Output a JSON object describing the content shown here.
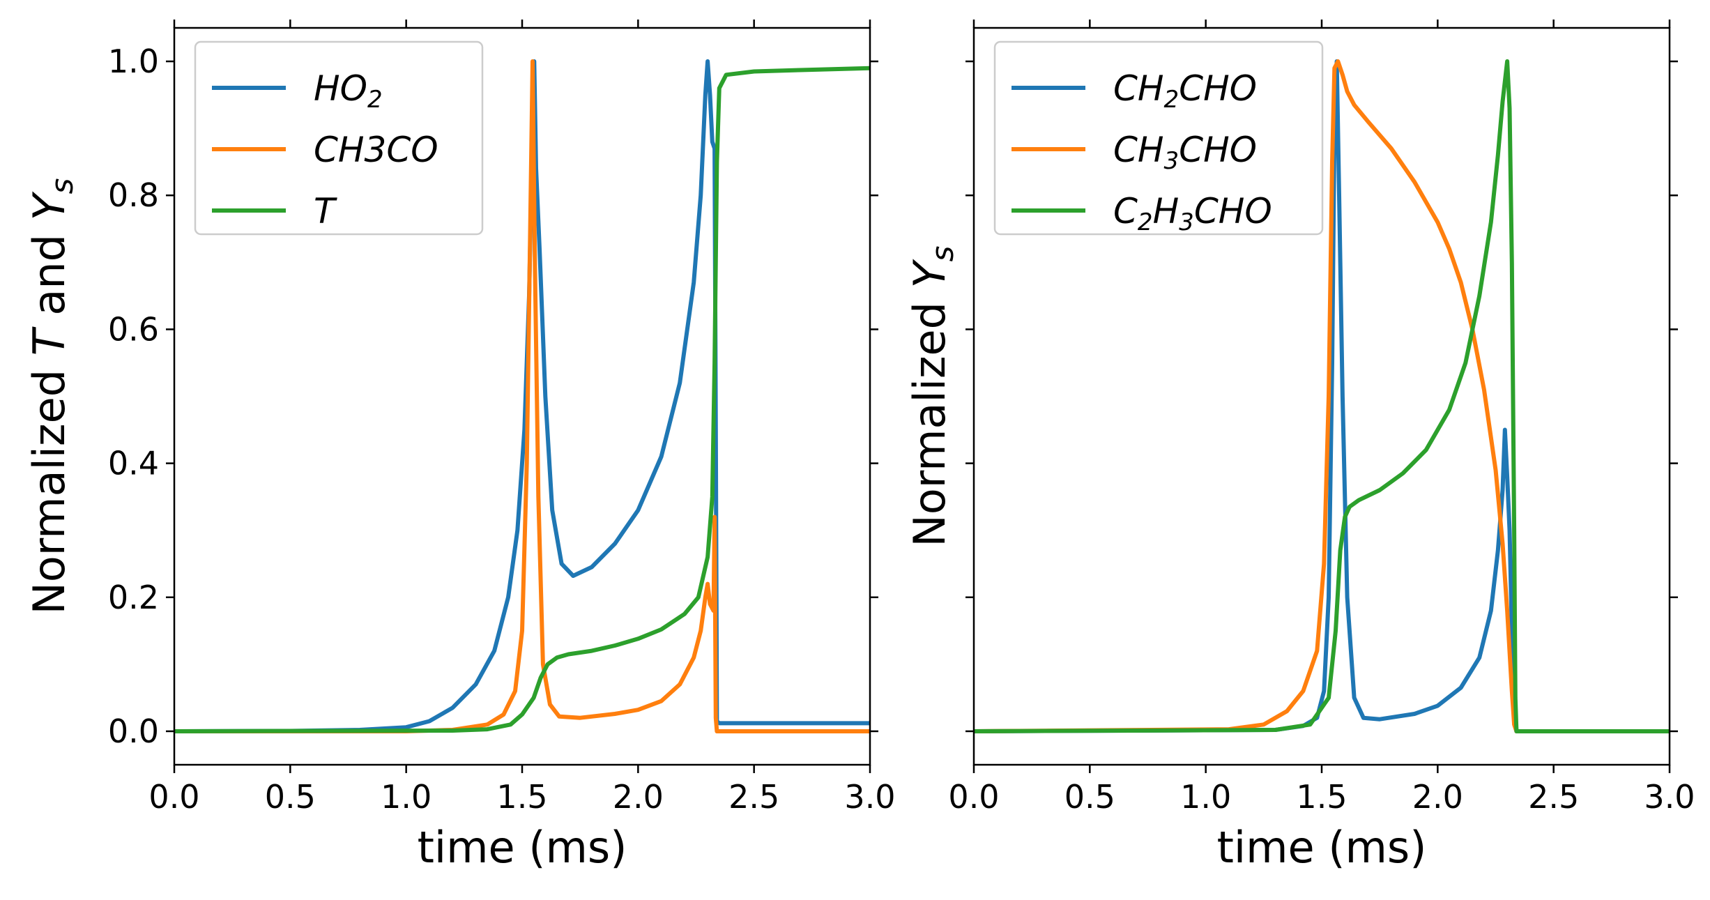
{
  "colors": {
    "blue": "#1f77b4",
    "orange": "#ff7f0e",
    "green": "#2ca02c"
  },
  "chart_data": [
    {
      "type": "line",
      "xlabel": "time (ms)",
      "ylabel": {
        "prefix": "Normalized ",
        "var1": "T",
        "mid": " and ",
        "var2": "Y",
        "sub": "s"
      },
      "xlim": [
        0,
        3
      ],
      "ylim": [
        -0.05,
        1.05
      ],
      "xticks": [
        "0.0",
        "0.5",
        "1.0",
        "1.5",
        "2.0",
        "2.5",
        "3.0"
      ],
      "yticks": [
        "0.0",
        "0.2",
        "0.4",
        "0.6",
        "0.8",
        "1.0"
      ],
      "show_ytick_labels": true,
      "grid": false,
      "legend_position": "top-left",
      "series": [
        {
          "name": "HO2",
          "legend": {
            "base": "HO",
            "sub": "2",
            "rest": ""
          },
          "color": "#1f77b4",
          "points": [
            [
              0,
              0
            ],
            [
              0.5,
              0.0005
            ],
            [
              0.8,
              0.002
            ],
            [
              1.0,
              0.006
            ],
            [
              1.1,
              0.015
            ],
            [
              1.2,
              0.035
            ],
            [
              1.3,
              0.07
            ],
            [
              1.38,
              0.12
            ],
            [
              1.44,
              0.2
            ],
            [
              1.48,
              0.3
            ],
            [
              1.51,
              0.45
            ],
            [
              1.53,
              0.65
            ],
            [
              1.545,
              0.9
            ],
            [
              1.552,
              1.0
            ],
            [
              1.56,
              0.84
            ],
            [
              1.575,
              0.72
            ],
            [
              1.6,
              0.5
            ],
            [
              1.63,
              0.33
            ],
            [
              1.67,
              0.25
            ],
            [
              1.72,
              0.232
            ],
            [
              1.8,
              0.245
            ],
            [
              1.9,
              0.28
            ],
            [
              2.0,
              0.33
            ],
            [
              2.1,
              0.41
            ],
            [
              2.18,
              0.52
            ],
            [
              2.24,
              0.67
            ],
            [
              2.27,
              0.8
            ],
            [
              2.29,
              0.95
            ],
            [
              2.3,
              1.0
            ],
            [
              2.31,
              0.95
            ],
            [
              2.32,
              0.88
            ],
            [
              2.33,
              0.87
            ],
            [
              2.335,
              0.45
            ],
            [
              2.34,
              0.015
            ],
            [
              2.35,
              0.012
            ],
            [
              2.5,
              0.012
            ],
            [
              3.0,
              0.012
            ]
          ]
        },
        {
          "name": "CH3CO",
          "legend": {
            "base": "CH3CO",
            "sub": "",
            "rest": ""
          },
          "color": "#ff7f0e",
          "points": [
            [
              0,
              0
            ],
            [
              1.0,
              0
            ],
            [
              1.2,
              0.002
            ],
            [
              1.35,
              0.01
            ],
            [
              1.42,
              0.025
            ],
            [
              1.47,
              0.06
            ],
            [
              1.5,
              0.15
            ],
            [
              1.52,
              0.4
            ],
            [
              1.535,
              0.75
            ],
            [
              1.545,
              1.0
            ],
            [
              1.555,
              0.7
            ],
            [
              1.57,
              0.35
            ],
            [
              1.59,
              0.1
            ],
            [
              1.62,
              0.04
            ],
            [
              1.66,
              0.022
            ],
            [
              1.75,
              0.02
            ],
            [
              1.9,
              0.026
            ],
            [
              2.0,
              0.032
            ],
            [
              2.1,
              0.045
            ],
            [
              2.18,
              0.07
            ],
            [
              2.24,
              0.11
            ],
            [
              2.27,
              0.15
            ],
            [
              2.29,
              0.2
            ],
            [
              2.3,
              0.22
            ],
            [
              2.31,
              0.19
            ],
            [
              2.325,
              0.18
            ],
            [
              2.33,
              0.32
            ],
            [
              2.335,
              0.02
            ],
            [
              2.34,
              0
            ],
            [
              3.0,
              0
            ]
          ]
        },
        {
          "name": "T",
          "legend": {
            "base": "T",
            "sub": "",
            "rest": ""
          },
          "color": "#2ca02c",
          "points": [
            [
              0,
              0
            ],
            [
              1.2,
              0.001
            ],
            [
              1.35,
              0.003
            ],
            [
              1.45,
              0.01
            ],
            [
              1.5,
              0.025
            ],
            [
              1.55,
              0.05
            ],
            [
              1.58,
              0.08
            ],
            [
              1.61,
              0.1
            ],
            [
              1.65,
              0.11
            ],
            [
              1.7,
              0.115
            ],
            [
              1.8,
              0.12
            ],
            [
              1.9,
              0.128
            ],
            [
              2.0,
              0.138
            ],
            [
              2.1,
              0.152
            ],
            [
              2.2,
              0.175
            ],
            [
              2.26,
              0.2
            ],
            [
              2.3,
              0.26
            ],
            [
              2.32,
              0.35
            ],
            [
              2.33,
              0.55
            ],
            [
              2.34,
              0.85
            ],
            [
              2.35,
              0.96
            ],
            [
              2.38,
              0.98
            ],
            [
              2.5,
              0.985
            ],
            [
              2.7,
              0.987
            ],
            [
              3.0,
              0.99
            ]
          ]
        }
      ]
    },
    {
      "type": "line",
      "xlabel": "time (ms)",
      "ylabel": {
        "prefix": "Normalized ",
        "var1": "",
        "mid": "",
        "var2": "Y",
        "sub": "s"
      },
      "xlim": [
        0,
        3
      ],
      "ylim": [
        -0.05,
        1.05
      ],
      "xticks": [
        "0.0",
        "0.5",
        "1.0",
        "1.5",
        "2.0",
        "2.5",
        "3.0"
      ],
      "yticks": [
        "0.0",
        "0.2",
        "0.4",
        "0.6",
        "0.8",
        "1.0"
      ],
      "show_ytick_labels": false,
      "grid": false,
      "legend_position": "top-left",
      "series": [
        {
          "name": "CH2CHO",
          "legend": {
            "base": "CH",
            "sub": "2",
            "rest": "CHO"
          },
          "color": "#1f77b4",
          "points": [
            [
              0,
              0
            ],
            [
              1.3,
              0.002
            ],
            [
              1.42,
              0.008
            ],
            [
              1.48,
              0.02
            ],
            [
              1.51,
              0.06
            ],
            [
              1.53,
              0.2
            ],
            [
              1.545,
              0.55
            ],
            [
              1.555,
              0.9
            ],
            [
              1.565,
              1.0
            ],
            [
              1.575,
              0.8
            ],
            [
              1.59,
              0.5
            ],
            [
              1.61,
              0.2
            ],
            [
              1.64,
              0.05
            ],
            [
              1.68,
              0.02
            ],
            [
              1.75,
              0.018
            ],
            [
              1.9,
              0.026
            ],
            [
              2.0,
              0.038
            ],
            [
              2.1,
              0.065
            ],
            [
              2.18,
              0.11
            ],
            [
              2.23,
              0.18
            ],
            [
              2.26,
              0.27
            ],
            [
              2.28,
              0.36
            ],
            [
              2.29,
              0.45
            ],
            [
              2.3,
              0.38
            ],
            [
              2.31,
              0.3
            ],
            [
              2.32,
              0.15
            ],
            [
              2.33,
              0.05
            ],
            [
              2.34,
              0
            ],
            [
              3.0,
              0
            ]
          ]
        },
        {
          "name": "CH3CHO",
          "legend": {
            "base": "CH",
            "sub": "3",
            "rest": "CHO"
          },
          "color": "#ff7f0e",
          "points": [
            [
              0,
              0
            ],
            [
              1.1,
              0.003
            ],
            [
              1.25,
              0.01
            ],
            [
              1.35,
              0.03
            ],
            [
              1.42,
              0.06
            ],
            [
              1.48,
              0.12
            ],
            [
              1.51,
              0.25
            ],
            [
              1.53,
              0.5
            ],
            [
              1.545,
              0.85
            ],
            [
              1.555,
              0.99
            ],
            [
              1.57,
              1.0
            ],
            [
              1.59,
              0.98
            ],
            [
              1.61,
              0.955
            ],
            [
              1.64,
              0.935
            ],
            [
              1.7,
              0.91
            ],
            [
              1.8,
              0.87
            ],
            [
              1.9,
              0.82
            ],
            [
              2.0,
              0.76
            ],
            [
              2.05,
              0.72
            ],
            [
              2.1,
              0.67
            ],
            [
              2.15,
              0.6
            ],
            [
              2.2,
              0.51
            ],
            [
              2.25,
              0.39
            ],
            [
              2.28,
              0.28
            ],
            [
              2.3,
              0.18
            ],
            [
              2.32,
              0.06
            ],
            [
              2.33,
              0.01
            ],
            [
              2.34,
              0
            ],
            [
              3.0,
              0
            ]
          ]
        },
        {
          "name": "C2H3CHO",
          "legend": {
            "base": "C",
            "sub": "2",
            "rest": "H",
            "sub2": "3",
            "rest2": "CHO"
          },
          "color": "#2ca02c",
          "points": [
            [
              0,
              0
            ],
            [
              1.3,
              0.002
            ],
            [
              1.45,
              0.01
            ],
            [
              1.53,
              0.05
            ],
            [
              1.56,
              0.15
            ],
            [
              1.58,
              0.27
            ],
            [
              1.6,
              0.32
            ],
            [
              1.62,
              0.335
            ],
            [
              1.66,
              0.345
            ],
            [
              1.75,
              0.36
            ],
            [
              1.85,
              0.385
            ],
            [
              1.95,
              0.42
            ],
            [
              2.05,
              0.48
            ],
            [
              2.12,
              0.55
            ],
            [
              2.18,
              0.65
            ],
            [
              2.23,
              0.76
            ],
            [
              2.26,
              0.86
            ],
            [
              2.28,
              0.94
            ],
            [
              2.3,
              1.0
            ],
            [
              2.31,
              0.93
            ],
            [
              2.32,
              0.7
            ],
            [
              2.33,
              0.3
            ],
            [
              2.335,
              0.05
            ],
            [
              2.34,
              0
            ],
            [
              3.0,
              0
            ]
          ]
        }
      ]
    }
  ]
}
